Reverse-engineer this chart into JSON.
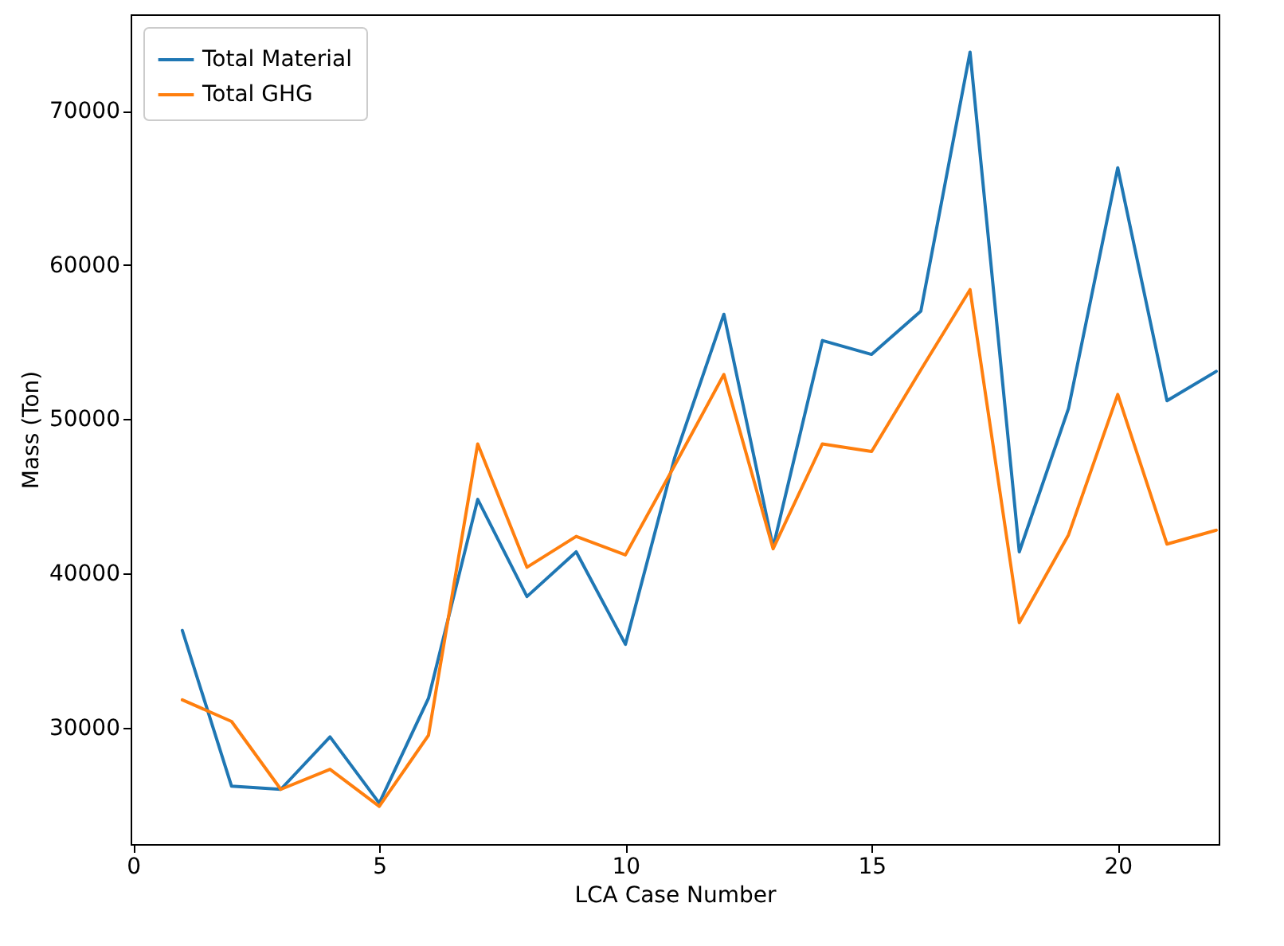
{
  "chart_data": {
    "type": "line",
    "xlabel": "LCA Case Number",
    "ylabel": "Mass (Ton)",
    "x": [
      1,
      2,
      3,
      4,
      5,
      6,
      7,
      8,
      9,
      10,
      11,
      12,
      13,
      14,
      15,
      16,
      17,
      18,
      19,
      20,
      21,
      22
    ],
    "series": [
      {
        "name": "Total Material",
        "color": "#1f77b4",
        "values": [
          36300,
          26200,
          26000,
          29400,
          25100,
          31900,
          44800,
          38500,
          41400,
          35400,
          47500,
          56800,
          41700,
          55100,
          54200,
          57000,
          73800,
          41400,
          50700,
          66300,
          51200,
          53100
        ]
      },
      {
        "name": "Total GHG",
        "color": "#ff7f0e",
        "values": [
          31800,
          30400,
          26000,
          27300,
          24900,
          29500,
          48400,
          40400,
          42400,
          41200,
          47000,
          52900,
          41600,
          48400,
          47900,
          53200,
          58400,
          36800,
          42500,
          51600,
          41900,
          42800
        ]
      }
    ],
    "xlim": [
      -0.05,
      22.05
    ],
    "xticks": [
      0,
      5,
      10,
      15,
      20
    ],
    "ylim": [
      22450,
      76250
    ],
    "yticks": [
      30000,
      40000,
      50000,
      60000,
      70000
    ],
    "grid": false,
    "legend": "top left",
    "marker": "none",
    "line_style": "solid"
  }
}
